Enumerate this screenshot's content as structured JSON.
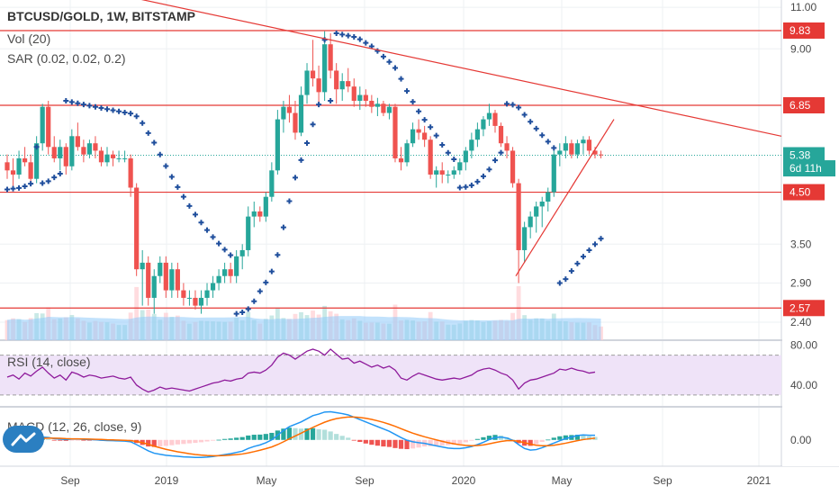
{
  "header": {
    "title": "BTCUSD/GOLD, 1W, BITSTAMP",
    "vol_label": "Vol (20)",
    "sar_label": "SAR (0.02, 0.02, 0.2)",
    "rsi_label": "RSI (14, close)",
    "macd_label": "MACD (12, 26, close, 9)"
  },
  "colors": {
    "up": "#26a69a",
    "down": "#ef5350",
    "sar": "#1f4e9c",
    "rsi": "#8e1a9b",
    "rsi_band": "#efe3f8",
    "macd_line": "#2196f3",
    "signal_line": "#ff6d00",
    "level": "#e53935",
    "volume": "#90caf9"
  },
  "chart_data": [
    {
      "type": "candlestick",
      "title": "BTCUSD/GOLD, 1W, BITSTAMP",
      "ylim": [
        2.2,
        11.2
      ],
      "y_scale": "log",
      "y_ticks": [
        11.0,
        9.0,
        3.5,
        2.9,
        2.4
      ],
      "x_ticks": [
        "Sep",
        "2019",
        "May",
        "Sep",
        "2020",
        "May",
        "Sep",
        "2021"
      ],
      "price_tags": [
        {
          "label": "9.83",
          "value": 9.83,
          "kind": "level"
        },
        {
          "label": "6.85",
          "value": 6.85,
          "kind": "level"
        },
        {
          "label": "5.38",
          "value": 5.38,
          "kind": "last"
        },
        {
          "label": "6d 11h",
          "value": 5.05,
          "kind": "countdown"
        },
        {
          "label": "4.50",
          "value": 4.5,
          "kind": "level"
        },
        {
          "label": "2.57",
          "value": 2.57,
          "kind": "level"
        }
      ],
      "horizontal_levels": [
        9.83,
        6.85,
        4.5,
        2.57
      ],
      "trendlines": [
        {
          "from": [
            "2018-06",
            11.5
          ],
          "to": [
            "2020-10",
            5.9
          ]
        },
        {
          "from": [
            "2020-03",
            3.0
          ],
          "to": [
            "2020-07",
            6.4
          ]
        }
      ],
      "candles": [
        [
          5.2,
          5.4,
          4.8,
          5.0
        ],
        [
          5.0,
          5.3,
          4.6,
          4.9
        ],
        [
          4.9,
          5.5,
          4.8,
          5.3
        ],
        [
          5.3,
          5.6,
          5.1,
          5.2
        ],
        [
          5.2,
          5.4,
          4.7,
          4.8
        ],
        [
          4.8,
          5.9,
          4.7,
          5.7
        ],
        [
          5.7,
          6.9,
          5.5,
          6.8
        ],
        [
          6.8,
          7.0,
          5.4,
          5.6
        ],
        [
          5.6,
          5.9,
          5.2,
          5.3
        ],
        [
          5.3,
          5.8,
          5.0,
          5.6
        ],
        [
          5.6,
          5.7,
          4.9,
          5.1
        ],
        [
          5.1,
          6.1,
          5.0,
          5.9
        ],
        [
          5.9,
          6.3,
          5.5,
          5.6
        ],
        [
          5.6,
          5.8,
          5.2,
          5.4
        ],
        [
          5.4,
          5.8,
          5.3,
          5.7
        ],
        [
          5.7,
          5.9,
          5.3,
          5.5
        ],
        [
          5.5,
          5.6,
          5.1,
          5.2
        ],
        [
          5.2,
          5.6,
          5.1,
          5.4
        ],
        [
          5.4,
          5.5,
          5.1,
          5.3
        ],
        [
          5.3,
          5.5,
          5.2,
          5.3
        ],
        [
          5.3,
          5.5,
          5.2,
          5.3
        ],
        [
          5.3,
          5.4,
          4.4,
          4.6
        ],
        [
          4.6,
          4.7,
          3.0,
          3.1
        ],
        [
          3.1,
          3.4,
          2.6,
          3.2
        ],
        [
          3.2,
          3.3,
          2.6,
          2.7
        ],
        [
          2.7,
          3.1,
          2.5,
          3.0
        ],
        [
          3.0,
          3.3,
          2.9,
          3.2
        ],
        [
          3.2,
          3.3,
          2.7,
          2.8
        ],
        [
          2.8,
          3.2,
          2.7,
          3.1
        ],
        [
          3.1,
          3.2,
          2.7,
          2.8
        ],
        [
          2.8,
          2.9,
          2.6,
          2.7
        ],
        [
          2.7,
          2.8,
          2.6,
          2.7
        ],
        [
          2.7,
          2.8,
          2.55,
          2.6
        ],
        [
          2.6,
          2.8,
          2.5,
          2.7
        ],
        [
          2.7,
          2.9,
          2.6,
          2.8
        ],
        [
          2.8,
          3.0,
          2.7,
          2.9
        ],
        [
          2.9,
          3.1,
          2.8,
          3.0
        ],
        [
          3.0,
          3.2,
          2.9,
          3.1
        ],
        [
          3.1,
          3.2,
          2.9,
          3.0
        ],
        [
          3.0,
          3.4,
          2.9,
          3.3
        ],
        [
          3.3,
          3.5,
          3.1,
          3.4
        ],
        [
          3.4,
          4.2,
          3.3,
          4.0
        ],
        [
          4.0,
          4.3,
          3.8,
          4.1
        ],
        [
          4.1,
          4.2,
          3.9,
          4.0
        ],
        [
          4.0,
          4.5,
          3.9,
          4.4
        ],
        [
          4.4,
          5.2,
          4.3,
          5.0
        ],
        [
          5.0,
          6.7,
          4.9,
          6.4
        ],
        [
          6.4,
          7.0,
          6.0,
          6.8
        ],
        [
          6.8,
          7.2,
          6.3,
          6.6
        ],
        [
          6.6,
          7.0,
          5.8,
          6.0
        ],
        [
          6.0,
          7.5,
          5.9,
          7.2
        ],
        [
          7.2,
          8.4,
          6.9,
          8.1
        ],
        [
          8.1,
          9.4,
          7.5,
          7.8
        ],
        [
          7.8,
          8.3,
          6.9,
          7.3
        ],
        [
          7.3,
          9.8,
          7.0,
          9.2
        ],
        [
          9.2,
          9.7,
          7.8,
          8.1
        ],
        [
          8.1,
          8.4,
          6.9,
          7.4
        ],
        [
          7.4,
          8.0,
          7.0,
          7.7
        ],
        [
          7.7,
          8.2,
          7.3,
          7.5
        ],
        [
          7.5,
          7.8,
          6.8,
          7.0
        ],
        [
          7.0,
          7.5,
          6.7,
          7.2
        ],
        [
          7.2,
          7.4,
          6.8,
          7.0
        ],
        [
          7.0,
          7.2,
          6.6,
          6.8
        ],
        [
          6.8,
          7.1,
          6.5,
          6.9
        ],
        [
          6.9,
          7.0,
          6.5,
          6.6
        ],
        [
          6.6,
          6.9,
          6.4,
          6.8
        ],
        [
          6.8,
          6.9,
          5.2,
          5.3
        ],
        [
          5.3,
          5.6,
          5.0,
          5.2
        ],
        [
          5.2,
          5.8,
          5.1,
          5.7
        ],
        [
          5.7,
          6.3,
          5.6,
          6.1
        ],
        [
          6.1,
          6.4,
          5.8,
          6.0
        ],
        [
          6.0,
          6.2,
          5.6,
          5.8
        ],
        [
          5.8,
          5.9,
          4.8,
          4.9
        ],
        [
          4.9,
          5.1,
          4.6,
          5.0
        ],
        [
          5.0,
          5.2,
          4.7,
          4.9
        ],
        [
          4.9,
          5.0,
          4.7,
          4.9
        ],
        [
          4.9,
          5.1,
          4.8,
          5.0
        ],
        [
          5.0,
          5.3,
          4.9,
          5.2
        ],
        [
          5.2,
          5.6,
          5.0,
          5.5
        ],
        [
          5.5,
          6.0,
          5.3,
          5.8
        ],
        [
          5.8,
          6.3,
          5.6,
          6.1
        ],
        [
          6.1,
          6.5,
          5.9,
          6.4
        ],
        [
          6.4,
          6.9,
          6.2,
          6.6
        ],
        [
          6.6,
          6.7,
          6.0,
          6.2
        ],
        [
          6.2,
          6.3,
          5.6,
          5.7
        ],
        [
          5.7,
          5.9,
          5.3,
          5.5
        ],
        [
          5.5,
          5.6,
          4.6,
          4.7
        ],
        [
          4.7,
          4.8,
          2.9,
          3.4
        ],
        [
          3.4,
          3.9,
          3.2,
          3.8
        ],
        [
          3.8,
          4.1,
          3.6,
          4.0
        ],
        [
          4.0,
          4.3,
          3.7,
          4.2
        ],
        [
          4.2,
          4.4,
          3.8,
          4.3
        ],
        [
          4.3,
          4.6,
          4.1,
          4.5
        ],
        [
          4.5,
          5.5,
          4.4,
          5.4
        ],
        [
          5.4,
          5.7,
          5.1,
          5.5
        ],
        [
          5.5,
          5.9,
          5.3,
          5.7
        ],
        [
          5.7,
          5.8,
          5.3,
          5.4
        ],
        [
          5.4,
          5.8,
          5.3,
          5.7
        ],
        [
          5.7,
          5.9,
          5.4,
          5.8
        ],
        [
          5.8,
          5.9,
          5.4,
          5.5
        ],
        [
          5.5,
          5.6,
          5.3,
          5.4
        ],
        [
          5.4,
          5.5,
          5.3,
          5.38
        ]
      ]
    },
    {
      "type": "line",
      "name": "RSI (14, close)",
      "ylim": [
        20,
        85
      ],
      "y_ticks": [
        80.0,
        40.0
      ],
      "band": [
        30,
        70
      ],
      "values": [
        48,
        50,
        46,
        52,
        49,
        54,
        58,
        52,
        47,
        50,
        45,
        53,
        51,
        48,
        50,
        49,
        47,
        48,
        49,
        47,
        46,
        48,
        40,
        36,
        33,
        35,
        38,
        36,
        37,
        36,
        35,
        34,
        36,
        38,
        40,
        42,
        43,
        45,
        44,
        46,
        47,
        52,
        53,
        52,
        55,
        60,
        68,
        72,
        70,
        66,
        70,
        74,
        76,
        74,
        70,
        76,
        71,
        66,
        67,
        62,
        64,
        61,
        58,
        60,
        57,
        59,
        55,
        47,
        45,
        49,
        52,
        50,
        48,
        46,
        45,
        46,
        47,
        46,
        48,
        50,
        54,
        56,
        57,
        55,
        52,
        50,
        45,
        36,
        42,
        45,
        46,
        48,
        50,
        52,
        56,
        55,
        57,
        55,
        54,
        52,
        53
      ]
    },
    {
      "type": "line",
      "name": "MACD (12, 26, close, 9)",
      "ylim": [
        -1.45,
        2.0
      ],
      "y_ticks": [
        0.0
      ],
      "series": [
        {
          "name": "MACD",
          "values": [
            0.15,
            0.12,
            0.1,
            0.08,
            0.06,
            0.1,
            0.18,
            0.15,
            0.08,
            0.05,
            0.02,
            0.05,
            0.06,
            0.03,
            0.02,
            0.01,
            -0.02,
            -0.04,
            -0.05,
            -0.06,
            -0.08,
            -0.12,
            -0.3,
            -0.5,
            -0.7,
            -0.85,
            -0.92,
            -0.98,
            -1.02,
            -1.05,
            -1.08,
            -1.1,
            -1.12,
            -1.12,
            -1.1,
            -1.06,
            -1.0,
            -0.94,
            -0.88,
            -0.8,
            -0.72,
            -0.55,
            -0.42,
            -0.32,
            -0.18,
            0.0,
            0.3,
            0.6,
            0.85,
            1.0,
            1.15,
            1.35,
            1.55,
            1.65,
            1.78,
            1.8,
            1.74,
            1.68,
            1.6,
            1.45,
            1.3,
            1.15,
            1.0,
            0.85,
            0.7,
            0.55,
            0.35,
            0.15,
            -0.02,
            -0.12,
            -0.18,
            -0.22,
            -0.3,
            -0.38,
            -0.45,
            -0.52,
            -0.55,
            -0.55,
            -0.5,
            -0.42,
            -0.3,
            -0.15,
            0.02,
            0.15,
            0.18,
            0.12,
            -0.02,
            -0.3,
            -0.55,
            -0.65,
            -0.62,
            -0.5,
            -0.35,
            -0.2,
            -0.05,
            0.08,
            0.18,
            0.28,
            0.32,
            0.3,
            0.3
          ]
        },
        {
          "name": "Signal",
          "values": [
            0.08,
            0.09,
            0.09,
            0.09,
            0.08,
            0.08,
            0.1,
            0.11,
            0.11,
            0.1,
            0.08,
            0.07,
            0.07,
            0.06,
            0.05,
            0.04,
            0.03,
            0.01,
            0.0,
            -0.01,
            -0.03,
            -0.05,
            -0.1,
            -0.18,
            -0.28,
            -0.4,
            -0.5,
            -0.6,
            -0.68,
            -0.76,
            -0.82,
            -0.88,
            -0.93,
            -0.97,
            -1.0,
            -1.01,
            -1.01,
            -1.0,
            -0.97,
            -0.94,
            -0.9,
            -0.83,
            -0.75,
            -0.66,
            -0.56,
            -0.45,
            -0.3,
            -0.12,
            0.07,
            0.25,
            0.43,
            0.62,
            0.8,
            0.97,
            1.13,
            1.26,
            1.36,
            1.42,
            1.46,
            1.46,
            1.43,
            1.38,
            1.31,
            1.22,
            1.12,
            1.0,
            0.87,
            0.72,
            0.57,
            0.43,
            0.31,
            0.2,
            0.1,
            0.0,
            -0.09,
            -0.18,
            -0.25,
            -0.31,
            -0.35,
            -0.37,
            -0.36,
            -0.32,
            -0.25,
            -0.17,
            -0.1,
            -0.05,
            -0.04,
            -0.09,
            -0.18,
            -0.27,
            -0.34,
            -0.37,
            -0.37,
            -0.34,
            -0.28,
            -0.21,
            -0.13,
            -0.05,
            0.02,
            0.07,
            0.11
          ]
        }
      ]
    }
  ]
}
